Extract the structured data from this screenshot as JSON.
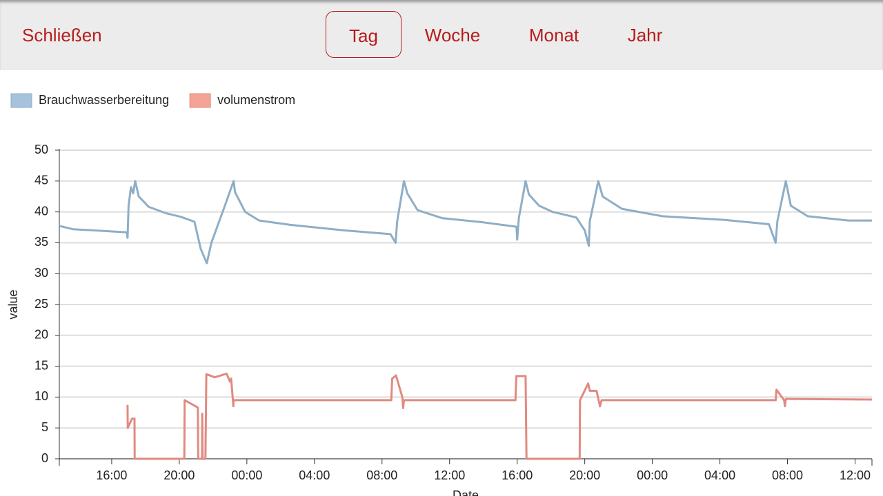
{
  "header": {
    "close": "Schließen",
    "tabs": [
      "Tag",
      "Woche",
      "Monat",
      "Jahr"
    ],
    "selected": 0
  },
  "chart_data": {
    "type": "line",
    "xlabel": "Date",
    "ylabel": "value",
    "xlim": [
      12.9,
      61
    ],
    "ylim": [
      0,
      50
    ],
    "yticks": [
      0,
      5,
      10,
      15,
      20,
      25,
      30,
      35,
      40,
      45,
      50
    ],
    "xticks": [
      {
        "value": 16,
        "label": "16:00"
      },
      {
        "value": 20,
        "label": "20:00"
      },
      {
        "value": 24,
        "label": "00:00"
      },
      {
        "value": 28,
        "label": "04:00"
      },
      {
        "value": 32,
        "label": "08:00"
      },
      {
        "value": 36,
        "label": "12:00"
      },
      {
        "value": 40,
        "label": "16:00"
      },
      {
        "value": 44,
        "label": "20:00"
      },
      {
        "value": 48,
        "label": "00:00"
      },
      {
        "value": 52,
        "label": "04:00"
      },
      {
        "value": 56,
        "label": "08:00"
      },
      {
        "value": 60,
        "label": "12:00"
      }
    ],
    "grid": true,
    "series": [
      {
        "name": "Brauchwasserbereitung",
        "color": "#8eaec6",
        "legend_color": "#a6c3db",
        "x": [
          12.94,
          13.7,
          16.9,
          16.94,
          17.0,
          17.14,
          17.27,
          17.39,
          17.6,
          18.2,
          19.2,
          20.1,
          20.9,
          21.27,
          21.63,
          21.9,
          22.7,
          23.22,
          23.3,
          23.9,
          24.73,
          26.57,
          29.8,
          32.5,
          32.8,
          32.9,
          33.3,
          33.5,
          34.1,
          35.55,
          38.0,
          39.96,
          40.0,
          40.1,
          40.5,
          40.7,
          41.3,
          42.1,
          43.5,
          44.0,
          44.24,
          44.3,
          44.8,
          45.06,
          46.2,
          48.6,
          52.3,
          54.9,
          55.3,
          55.4,
          55.9,
          56.2,
          57.2,
          59.6,
          61
        ],
        "values": [
          37.7,
          37.2,
          36.7,
          35.8,
          41,
          44,
          43,
          45,
          42.5,
          40.8,
          39.8,
          39.2,
          38.4,
          34,
          31.7,
          35,
          41,
          45,
          43.2,
          40,
          38.6,
          37.9,
          37,
          36.4,
          35,
          38.5,
          45,
          43,
          40.3,
          39,
          38.3,
          37.6,
          35.5,
          39,
          45,
          42.8,
          41,
          40,
          39.1,
          37,
          34.5,
          38.5,
          45,
          42.5,
          40.5,
          39.3,
          38.7,
          38,
          35,
          38.5,
          45,
          41,
          39.3,
          38.6,
          38.6
        ]
      },
      {
        "name": "volumenstrom",
        "color": "#e08a80",
        "legend_color": "#f4a395",
        "x": [
          16.94,
          16.95,
          17.2,
          17.35,
          17.36,
          20.3,
          20.32,
          21.1,
          21.12,
          21.35,
          21.36,
          21.38,
          21.55,
          21.6,
          22.1,
          22.8,
          23.0,
          23.07,
          23.2,
          23.22,
          32.55,
          32.6,
          32.83,
          33.2,
          33.25,
          33.3,
          39.9,
          39.95,
          40.5,
          40.55,
          43.7,
          43.72,
          44.2,
          44.3,
          44.7,
          44.9,
          45.0,
          55.3,
          55.35,
          55.8,
          55.85,
          55.9,
          61
        ],
        "values": [
          8.7,
          5,
          6.5,
          6.5,
          0,
          0,
          9.5,
          8.3,
          0,
          0,
          7.3,
          0,
          0,
          13.7,
          13.2,
          13.8,
          12.5,
          13,
          8.5,
          9.5,
          9.5,
          13,
          13.5,
          10,
          8.2,
          9.5,
          9.5,
          13.4,
          13.4,
          0,
          0,
          9.5,
          12.2,
          11,
          11,
          8.5,
          9.5,
          9.5,
          11.2,
          9.5,
          8.5,
          9.7,
          9.6
        ]
      }
    ]
  }
}
